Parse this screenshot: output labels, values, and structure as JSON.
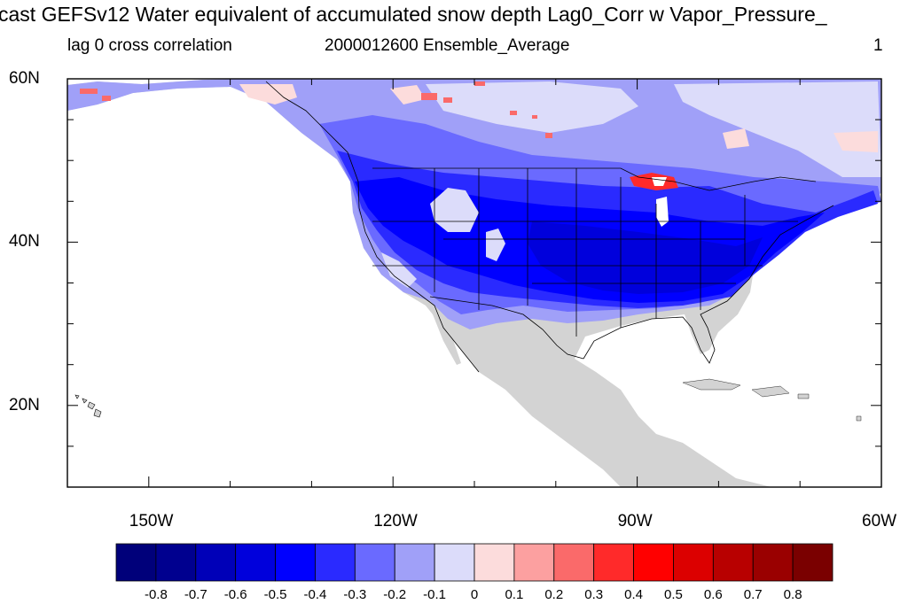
{
  "title": "cast GEFSv12 Water equivalent of accumulated snow depth Lag0_Corr w Vapor_Pressure_",
  "subtitle_left": "lag 0 cross correlation",
  "subtitle_center": "2000012600 Ensemble_Average",
  "subtitle_right": "1",
  "map": {
    "projection": "cylindrical-equidistant",
    "lon_range": [
      -160,
      -60
    ],
    "lat_range": [
      10,
      60
    ],
    "land_no_data_color": "#d3d3d3",
    "ocean_color": "#ffffff"
  },
  "axes": {
    "y_ticks": [
      {
        "value": 60,
        "label": "60N"
      },
      {
        "value": 40,
        "label": "40N"
      },
      {
        "value": 20,
        "label": "20N"
      }
    ],
    "x_ticks": [
      {
        "value": -150,
        "label": "150W"
      },
      {
        "value": -120,
        "label": "120W"
      },
      {
        "value": -90,
        "label": "90W"
      },
      {
        "value": -60,
        "label": "60W"
      }
    ]
  },
  "colorbar": {
    "levels": [
      "-0.8",
      "-0.7",
      "-0.6",
      "-0.5",
      "-0.4",
      "-0.3",
      "-0.2",
      "-0.1",
      "0",
      "0.1",
      "0.2",
      "0.3",
      "0.4",
      "0.5",
      "0.6",
      "0.7",
      "0.8"
    ],
    "colors": [
      "#00007a",
      "#00008f",
      "#0000b8",
      "#0000dc",
      "#0000ff",
      "#2a2aff",
      "#6a6aff",
      "#a0a0f8",
      "#dcdcfa",
      "#fcdcdc",
      "#fca0a0",
      "#fa6a6a",
      "#ff2a2a",
      "#ff0000",
      "#dc0000",
      "#b80000",
      "#9a0000",
      "#7a0000"
    ]
  }
}
